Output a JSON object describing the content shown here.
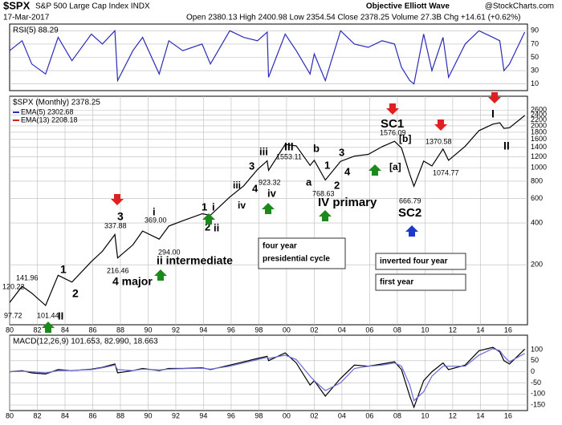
{
  "header": {
    "symbol": "$SPX",
    "name": "S&P 500 Large Cap Index INDX",
    "date": "17-Mar-2017",
    "quote": "Open 2380.13  High 2400.98  Low 2354.54  Close 2378.25  Volume 27.3B  Chg +14.61 (+0.62%)",
    "brand": "Objective Elliott Wave",
    "site": "@StockCharts.com"
  },
  "chart_data": [
    {
      "type": "line",
      "title": "RSI(5) 88.29",
      "x": [
        1980.0,
        1980.9,
        1981.6,
        1982.6,
        1983.5,
        1984.5,
        1985.9,
        1986.7,
        1987.6,
        1987.8,
        1988.9,
        1989.6,
        1990.8,
        1991.5,
        1992.5,
        1993.9,
        1994.5,
        1995.9,
        1996.9,
        1997.9,
        1998.6,
        1998.7,
        1999.9,
        2000.7,
        2001.7,
        2002.0,
        2002.8,
        2003.9,
        2004.9,
        2005.9,
        2006.9,
        2007.8,
        2008.3,
        2008.9,
        2009.2,
        2009.9,
        2010.5,
        2011.3,
        2011.7,
        2012.9,
        2013.9,
        2014.9,
        2015.4,
        2015.7,
        2016.1,
        2017.2
      ],
      "series": [
        {
          "color": "#2b2bb8",
          "values": [
            60,
            75,
            40,
            25,
            80,
            45,
            85,
            70,
            90,
            15,
            60,
            80,
            25,
            75,
            60,
            70,
            40,
            90,
            80,
            75,
            88,
            20,
            85,
            60,
            25,
            55,
            15,
            90,
            70,
            65,
            75,
            70,
            35,
            15,
            10,
            85,
            30,
            80,
            20,
            70,
            90,
            80,
            75,
            30,
            40,
            88
          ]
        }
      ],
      "xlim": [
        1980,
        2017.4
      ],
      "ylim": [
        0,
        100
      ],
      "yticks": [
        10,
        30,
        50,
        70,
        90
      ],
      "log": false
    },
    {
      "type": "line",
      "title": "$SPX (Monthly) 2378.25",
      "legend_entries": [
        {
          "text": "EMA(5) 2302.68",
          "color": "#2b2bb8"
        },
        {
          "text": "EMA(13) 2208.18",
          "color": "#d02020"
        }
      ],
      "x": [
        1980.0,
        1980.9,
        1981.6,
        1982.6,
        1983.5,
        1984.5,
        1985.9,
        1986.7,
        1987.6,
        1987.8,
        1988.9,
        1989.6,
        1990.8,
        1991.5,
        1992.5,
        1993.9,
        1994.5,
        1995.9,
        1996.9,
        1997.9,
        1998.6,
        1998.7,
        1999.9,
        2000.7,
        2001.7,
        2002.0,
        2002.8,
        2003.9,
        2004.9,
        2005.9,
        2006.9,
        2007.8,
        2008.3,
        2008.9,
        2009.2,
        2009.9,
        2010.5,
        2011.3,
        2011.7,
        2012.9,
        2013.9,
        2014.9,
        2015.4,
        2015.7,
        2016.1,
        2017.2
      ],
      "series": [
        {
          "color": "#000000",
          "values": [
            107,
            140,
            125,
            102,
            168,
            150,
            211,
            250,
            330,
            224,
            278,
            350,
            306,
            380,
            415,
            466,
            455,
            615,
            740,
            970,
            1120,
            957,
            1469,
            1436,
            1040,
            1130,
            815,
            1111,
            1211,
            1248,
            1418,
            1549,
            1385,
            896,
            735,
            1115,
            1030,
            1363,
            1131,
            1426,
            1848,
            2058,
            2107,
            1920,
            1940,
            2378
          ]
        }
      ],
      "xlim": [
        1980,
        2017.4
      ],
      "ylim": [
        74,
        3270
      ],
      "log": true,
      "yticks": [
        200,
        400,
        600,
        800,
        1000,
        1200,
        1400,
        1600,
        1800,
        2000,
        2200,
        2400,
        2600
      ],
      "xticks": [
        {
          "value": 1980,
          "label": "80"
        },
        {
          "value": 1982,
          "label": "82"
        },
        {
          "value": 1984,
          "label": "84"
        },
        {
          "value": 1986,
          "label": "86"
        },
        {
          "value": 1988,
          "label": "88"
        },
        {
          "value": 1990,
          "label": "90"
        },
        {
          "value": 1992,
          "label": "92"
        },
        {
          "value": 1994,
          "label": "94"
        },
        {
          "value": 1996,
          "label": "96"
        },
        {
          "value": 1998,
          "label": "98"
        },
        {
          "value": 2000,
          "label": "00"
        },
        {
          "value": 2002,
          "label": "02"
        },
        {
          "value": 2004,
          "label": "04"
        },
        {
          "value": 2006,
          "label": "06"
        },
        {
          "value": 2008,
          "label": "08"
        },
        {
          "value": 2010,
          "label": "10"
        },
        {
          "value": 2012,
          "label": "12"
        },
        {
          "value": 2014,
          "label": "14"
        },
        {
          "value": 2016,
          "label": "16"
        }
      ],
      "annotations": [
        {
          "text": "120.22",
          "color": "#000"
        },
        {
          "text": "141.96",
          "color": "#000"
        },
        {
          "text": "97.72",
          "color": "#000"
        },
        {
          "text": "101.44",
          "color": "#000"
        },
        {
          "text": "1",
          "color": "#000"
        },
        {
          "text": "2",
          "color": "#000"
        },
        {
          "text": "II",
          "color": "#1a1acc"
        },
        {
          "text": "3",
          "color": "#000"
        },
        {
          "text": "337.88",
          "color": "#000"
        },
        {
          "text": "216.46",
          "color": "#000"
        },
        {
          "text": "4 major",
          "color": "#000"
        },
        {
          "text": "i",
          "color": "#7a1a7a"
        },
        {
          "text": "369.00",
          "color": "#000"
        },
        {
          "text": "294.00",
          "color": "#000"
        },
        {
          "text": "ii intermediate",
          "color": "#7a1a7a"
        },
        {
          "text": "1",
          "color": "#1a1acc"
        },
        {
          "text": "i",
          "color": "#1a1acc"
        },
        {
          "text": "2",
          "color": "#1a1acc"
        },
        {
          "text": "ii",
          "color": "#2e6b2e"
        },
        {
          "text": "3",
          "color": "#1a1acc"
        },
        {
          "text": "iii",
          "color": "#2e6b2e"
        },
        {
          "text": "4",
          "color": "#1a1acc"
        },
        {
          "text": "iv",
          "color": "#2e6b2e"
        },
        {
          "text": "iii",
          "color": "#7a1a7a"
        },
        {
          "text": "iv",
          "color": "#7a1a7a"
        },
        {
          "text": "923.32",
          "color": "#000"
        },
        {
          "text": "III",
          "color": "#1a1acc"
        },
        {
          "text": "1553.11",
          "color": "#000"
        },
        {
          "text": "b",
          "color": "#000"
        },
        {
          "text": "a",
          "color": "#000"
        },
        {
          "text": "1",
          "color": "#000"
        },
        {
          "text": "2",
          "color": "#000"
        },
        {
          "text": "3",
          "color": "#000"
        },
        {
          "text": "4",
          "color": "#000"
        },
        {
          "text": "768.63",
          "color": "#000"
        },
        {
          "text": "IV primary",
          "color": "#1a1acc"
        },
        {
          "text": "SC1",
          "color": "#22c0d8"
        },
        {
          "text": "1576.09",
          "color": "#000"
        },
        {
          "text": "[b]",
          "color": "#7fb8e0"
        },
        {
          "text": "[a]",
          "color": "#7fb8e0"
        },
        {
          "text": "666.79",
          "color": "#000"
        },
        {
          "text": "SC2",
          "color": "#22c0d8"
        },
        {
          "text": "1370.58",
          "color": "#000"
        },
        {
          "text": "1074.77",
          "color": "#000"
        },
        {
          "text": "I",
          "color": "#1a1acc"
        },
        {
          "text": "II",
          "color": "#1a1acc"
        }
      ],
      "boxes": [
        {
          "lines": [
            "four year",
            "presidential cycle"
          ],
          "color": "#1a7a1a"
        },
        {
          "lines": [
            "inverted four year"
          ],
          "color": "#d02020"
        },
        {
          "lines": [
            "first year"
          ],
          "color": "#1a1acc"
        }
      ]
    },
    {
      "type": "line",
      "title": "MACD(12,26,9) 101.653, 82.990, 18.663",
      "x": [
        1980.0,
        1980.9,
        1981.6,
        1982.6,
        1983.5,
        1984.5,
        1985.9,
        1986.7,
        1987.6,
        1987.8,
        1988.9,
        1989.6,
        1990.8,
        1991.5,
        1992.5,
        1993.9,
        1994.5,
        1995.9,
        1996.9,
        1997.9,
        1998.6,
        1998.7,
        1999.9,
        2000.7,
        2001.7,
        2002.0,
        2002.8,
        2003.9,
        2004.9,
        2005.9,
        2006.9,
        2007.8,
        2008.3,
        2008.9,
        2009.2,
        2009.9,
        2010.5,
        2011.3,
        2011.7,
        2012.9,
        2013.9,
        2014.9,
        2015.4,
        2015.7,
        2016.1,
        2017.2
      ],
      "series": [
        {
          "color": "#000000",
          "values": [
            0,
            5,
            -5,
            -10,
            10,
            5,
            12,
            20,
            35,
            -5,
            5,
            15,
            5,
            15,
            15,
            18,
            10,
            30,
            45,
            60,
            70,
            50,
            85,
            40,
            -60,
            -40,
            -110,
            -30,
            30,
            25,
            35,
            45,
            10,
            -110,
            -160,
            -40,
            0,
            40,
            10,
            30,
            95,
            110,
            90,
            50,
            35,
            102
          ]
        },
        {
          "color": "#6a6ad8",
          "values": [
            0,
            3,
            0,
            -5,
            5,
            6,
            10,
            18,
            30,
            10,
            5,
            12,
            8,
            12,
            14,
            16,
            12,
            25,
            40,
            55,
            65,
            60,
            75,
            55,
            -20,
            -40,
            -85,
            -50,
            15,
            25,
            30,
            40,
            25,
            -60,
            -130,
            -90,
            -20,
            25,
            25,
            25,
            75,
            105,
            95,
            70,
            45,
            83
          ]
        }
      ],
      "xlim": [
        1980,
        2017.4
      ],
      "ylim": [
        -175,
        165
      ],
      "log": false,
      "yticks": [
        100,
        50,
        0,
        -50,
        -100,
        -150
      ],
      "xticks": [
        {
          "value": 1980,
          "label": "80"
        },
        {
          "value": 1982,
          "label": "82"
        },
        {
          "value": 1984,
          "label": "84"
        },
        {
          "value": 1986,
          "label": "86"
        },
        {
          "value": 1988,
          "label": "88"
        },
        {
          "value": 1990,
          "label": "90"
        },
        {
          "value": 1992,
          "label": "92"
        },
        {
          "value": 1994,
          "label": "94"
        },
        {
          "value": 1996,
          "label": "96"
        },
        {
          "value": 1998,
          "label": "98"
        },
        {
          "value": 2000,
          "label": "00"
        },
        {
          "value": 2002,
          "label": "02"
        },
        {
          "value": 2004,
          "label": "04"
        },
        {
          "value": 2006,
          "label": "06"
        },
        {
          "value": 2008,
          "label": "08"
        },
        {
          "value": 2010,
          "label": "10"
        },
        {
          "value": 2012,
          "label": "12"
        },
        {
          "value": 2014,
          "label": "14"
        },
        {
          "value": 2016,
          "label": "16"
        }
      ]
    }
  ]
}
